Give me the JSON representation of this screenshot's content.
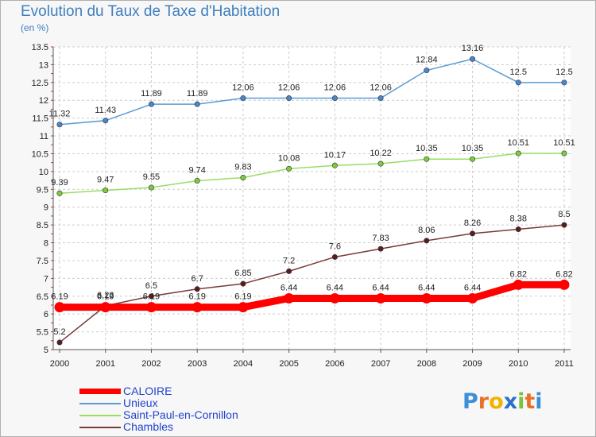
{
  "header": {
    "title": "Evolution du Taux de Taxe d'Habitation",
    "subtitle": "(en %)"
  },
  "chart_data": {
    "type": "line",
    "title": "Evolution du Taux de Taxe d'Habitation",
    "subtitle": "(en %)",
    "x": [
      "2000",
      "2001",
      "2002",
      "2003",
      "2004",
      "2005",
      "2006",
      "2007",
      "2008",
      "2009",
      "2010",
      "2011"
    ],
    "ylim": [
      5,
      13.5
    ],
    "yticks": [
      "5",
      "5.5",
      "6",
      "6.5",
      "7",
      "7.5",
      "8",
      "8.5",
      "9",
      "9.5",
      "10",
      "10.5",
      "11",
      "11.5",
      "12",
      "12.5",
      "13",
      "13.5"
    ],
    "grid": "horizontal dashed",
    "legend_position": "bottom-left",
    "series": [
      {
        "name": "Unieux",
        "color": "#5b9bd5",
        "marker": "#4a86c8",
        "values": [
          11.32,
          11.43,
          11.89,
          11.89,
          12.06,
          12.06,
          12.06,
          12.06,
          12.84,
          13.16,
          12.5,
          12.5
        ],
        "labels": [
          "11.32",
          "11.43",
          "11.89",
          "11.89",
          "12.06",
          "12.06",
          "12.06",
          "12.06",
          "12.84",
          "13.16",
          "12.5",
          "12.5"
        ]
      },
      {
        "name": "Saint-Paul-en-Cornillon",
        "color": "#99dd66",
        "marker": "#7ccc3c",
        "values": [
          9.39,
          9.47,
          9.55,
          9.74,
          9.83,
          10.08,
          10.17,
          10.22,
          10.35,
          10.35,
          10.51,
          10.51
        ],
        "labels": [
          "9.39",
          "9.47",
          "9.55",
          "9.74",
          "9.83",
          "10.08",
          "10.17",
          "10.22",
          "10.35",
          "10.35",
          "10.51",
          "10.51"
        ]
      },
      {
        "name": "Chambles",
        "color": "#7a3a3a",
        "marker": "#5a1c1c",
        "values": [
          5.2,
          6.23,
          6.5,
          6.7,
          6.85,
          7.2,
          7.6,
          7.83,
          8.06,
          8.26,
          8.38,
          8.5
        ],
        "labels": [
          "5.2",
          "6.23",
          "6.5",
          "6.7",
          "6.85",
          "7.2",
          "7.6",
          "7.83",
          "8.06",
          "8.26",
          "8.38",
          "8.5"
        ]
      },
      {
        "name": "CALOIRE",
        "color": "#ff0000",
        "marker": "#ff0000",
        "thick": true,
        "values": [
          6.19,
          6.19,
          6.19,
          6.19,
          6.19,
          6.44,
          6.44,
          6.44,
          6.44,
          6.44,
          6.82,
          6.82
        ],
        "labels": [
          "6.19",
          "6.19",
          "6.19",
          "6.19",
          "6.19",
          "6.44",
          "6.44",
          "6.44",
          "6.44",
          "6.44",
          "6.82",
          "6.82"
        ]
      }
    ]
  },
  "legend": {
    "items": [
      {
        "label": "CALOIRE",
        "color": "#ff0000",
        "thick": true
      },
      {
        "label": "Unieux",
        "color": "#5b9bd5"
      },
      {
        "label": "Saint-Paul-en-Cornillon",
        "color": "#99dd66"
      },
      {
        "label": "Chambles",
        "color": "#7a3a3a"
      }
    ]
  },
  "logo": {
    "text": "Proxiti",
    "letters": [
      "P",
      "r",
      "o",
      "x",
      "i",
      "t",
      "i"
    ],
    "colors": [
      "#3a8fd8",
      "#e8712a",
      "#f0b400",
      "#2b6fc7",
      "#7cc23c",
      "#e8712a",
      "#3a8fd8"
    ]
  }
}
